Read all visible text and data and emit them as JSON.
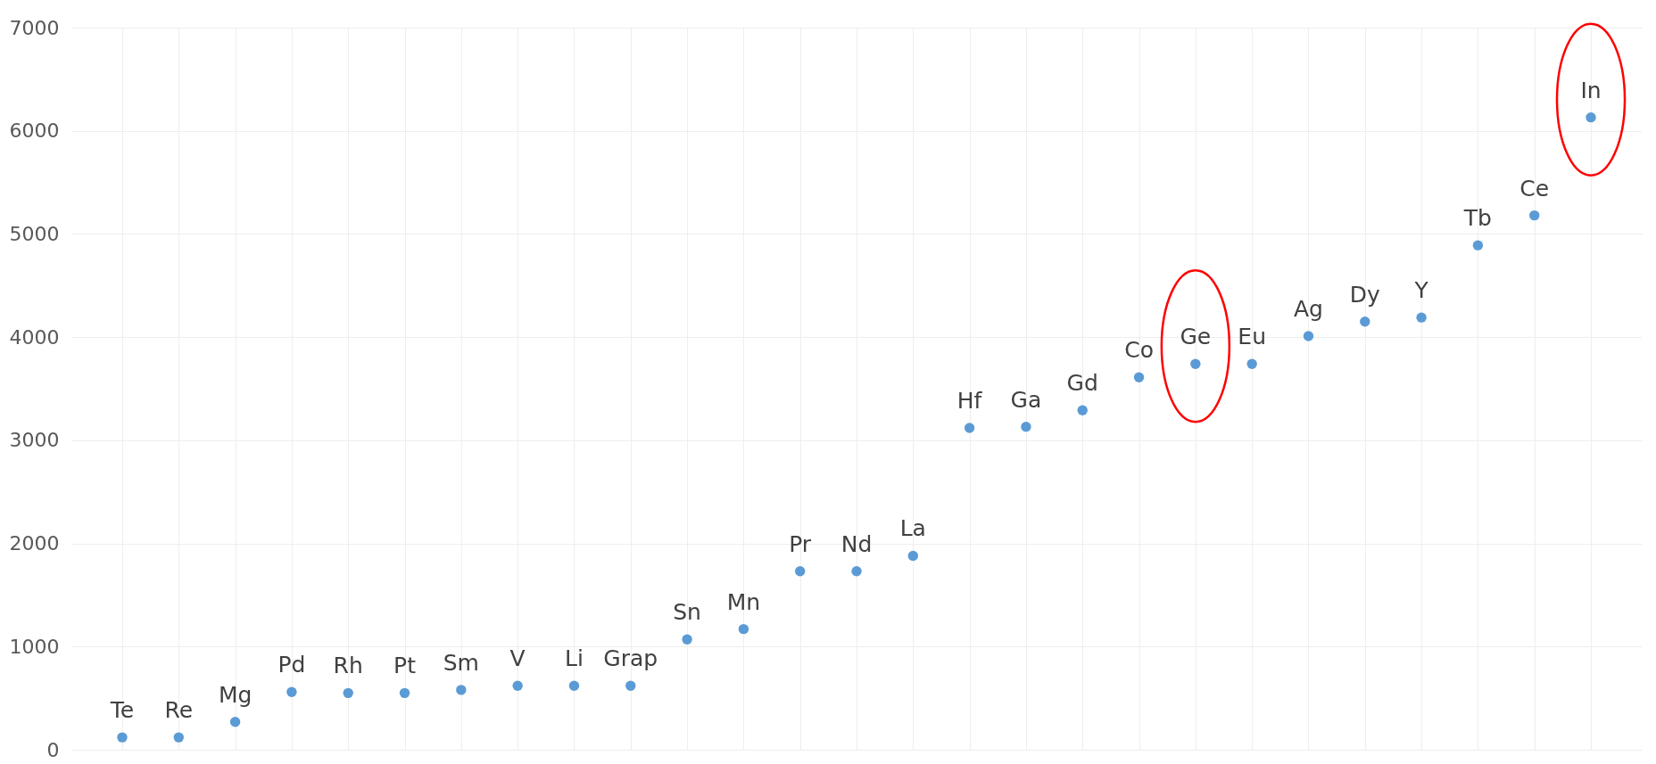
{
  "chart_data": {
    "type": "scatter",
    "categories": [
      "Te",
      "Re",
      "Mg",
      "Pd",
      "Rh",
      "Pt",
      "Sm",
      "V",
      "Li",
      "Grap",
      "Sn",
      "Mn",
      "Pr",
      "Nd",
      "La",
      "Hf",
      "Ga",
      "Gd",
      "Co",
      "Ge",
      "Eu",
      "Ag",
      "Dy",
      "Y",
      "Tb",
      "Ce",
      "In"
    ],
    "series": [
      {
        "color": "#5b9bd5",
        "values": [
          120,
          120,
          270,
          560,
          550,
          550,
          580,
          620,
          620,
          620,
          1070,
          1170,
          1730,
          1730,
          1880,
          3120,
          3130,
          3290,
          3610,
          3740,
          3740,
          4010,
          4150,
          4190,
          4890,
          5180,
          6130
        ]
      }
    ],
    "ylim": [
      0,
      7000
    ],
    "yticks": [
      0,
      1000,
      2000,
      3000,
      4000,
      5000,
      6000,
      7000
    ],
    "grid": true,
    "tick_labels": "y",
    "marker": "circle"
  }
}
